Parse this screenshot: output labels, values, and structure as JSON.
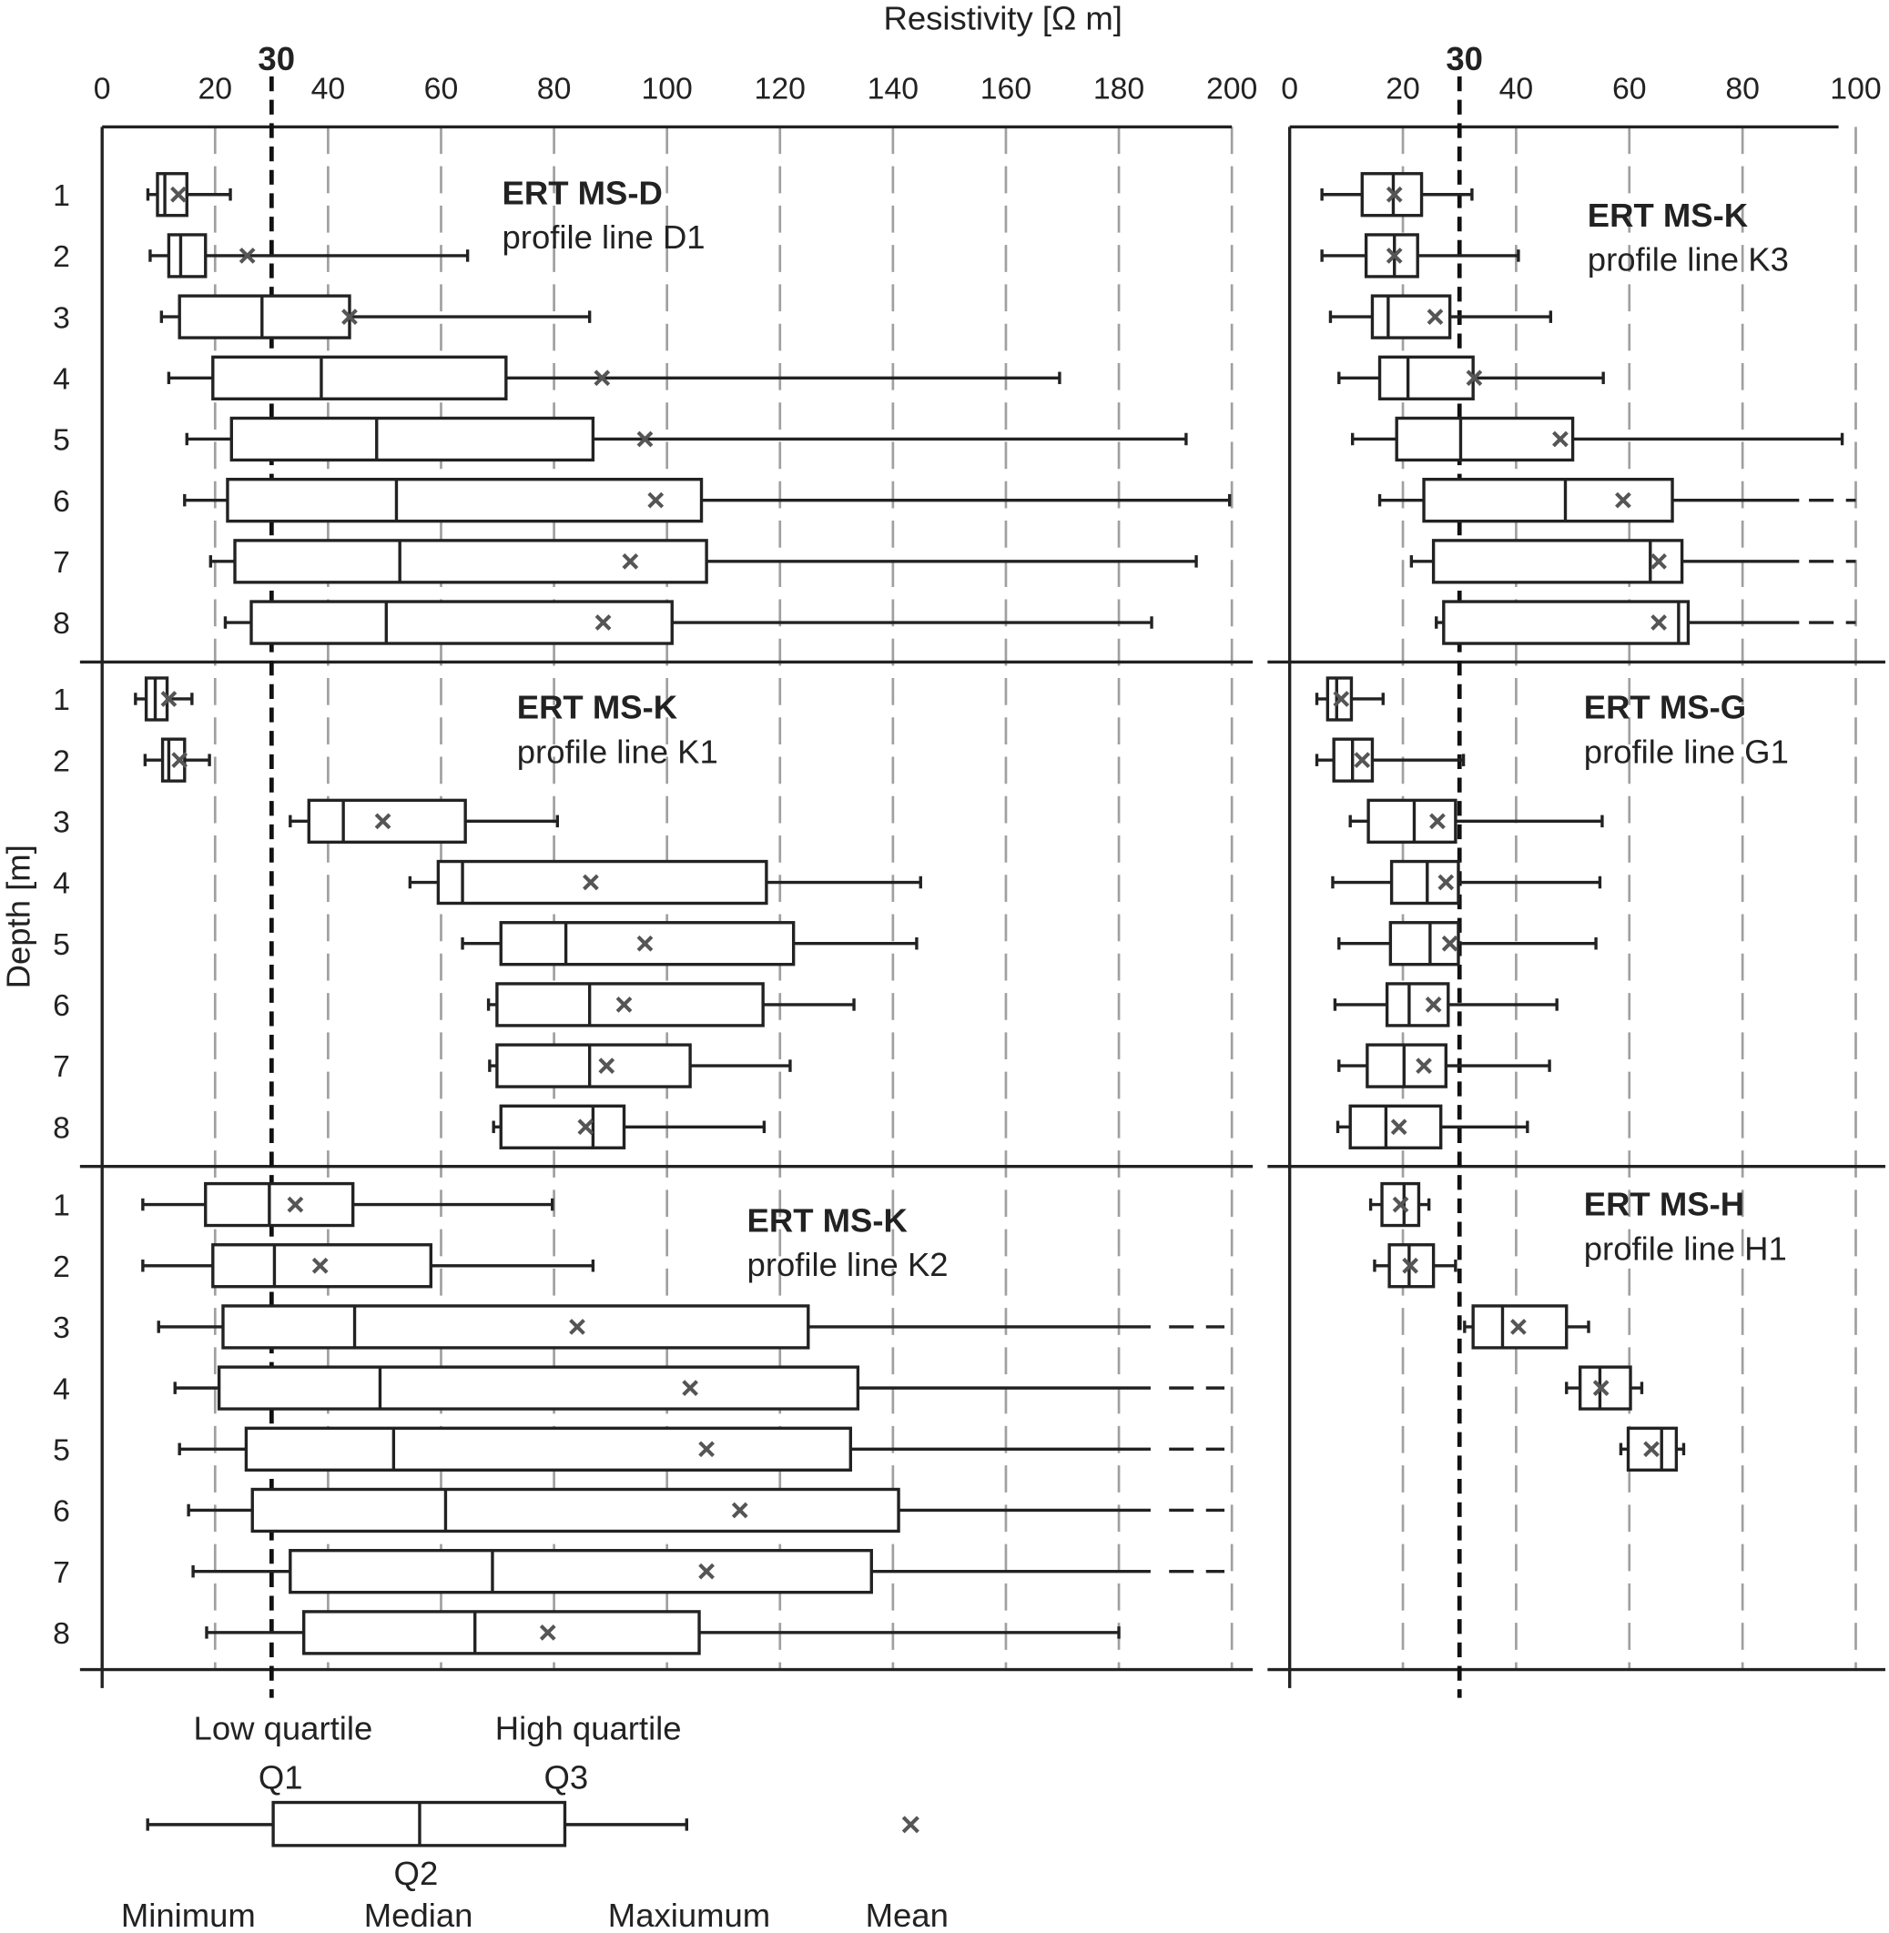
{
  "chart_data": {
    "type": "boxplot",
    "title": "",
    "xlabel": "Resistivity [Ω m]",
    "ylabel": "Depth [m]",
    "threshold": {
      "value": 30,
      "label": "30"
    },
    "axes": [
      {
        "id": "left",
        "xlim": [
          0,
          200
        ],
        "ticks": [
          "0",
          "20",
          "40",
          "60",
          "80",
          "100",
          "120",
          "140",
          "160",
          "180",
          "200"
        ],
        "grid": true
      },
      {
        "id": "right",
        "xlim": [
          0,
          100
        ],
        "ticks": [
          "0",
          "20",
          "40",
          "60",
          "80",
          "100"
        ],
        "grid": true
      }
    ],
    "depth_labels": [
      "1",
      "2",
      "3",
      "4",
      "5",
      "6",
      "7",
      "8"
    ],
    "panels": [
      {
        "axis": "left",
        "row": 0,
        "title": "ERT MS-D",
        "subtitle": "profile line D1",
        "boxes": [
          {
            "depth": 1,
            "min": 8.1,
            "q1": 9.8,
            "median": 11.1,
            "q3": 15.0,
            "max": 22.7,
            "mean": 13.5
          },
          {
            "depth": 2,
            "min": 8.5,
            "q1": 11.8,
            "median": 13.9,
            "q3": 18.3,
            "max": 64.7,
            "mean": 25.7
          },
          {
            "depth": 3,
            "min": 10.5,
            "q1": 13.7,
            "median": 28.3,
            "q3": 43.8,
            "max": 86.3,
            "mean": 43.8
          },
          {
            "depth": 4,
            "min": 11.8,
            "q1": 19.6,
            "median": 38.8,
            "q3": 71.5,
            "max": 169.5,
            "mean": 88.5
          },
          {
            "depth": 5,
            "min": 15.0,
            "q1": 22.9,
            "median": 48.6,
            "q3": 86.9,
            "max": 191.9,
            "mean": 96.1
          },
          {
            "depth": 6,
            "min": 14.6,
            "q1": 22.2,
            "median": 52.1,
            "q3": 106.1,
            "max": 199.6,
            "mean": 98.0
          },
          {
            "depth": 7,
            "min": 19.2,
            "q1": 23.5,
            "median": 52.7,
            "q3": 107.0,
            "max": 193.7,
            "mean": 93.5
          },
          {
            "depth": 8,
            "min": 21.8,
            "q1": 26.4,
            "median": 50.3,
            "q3": 100.9,
            "max": 185.8,
            "mean": 88.7
          }
        ]
      },
      {
        "axis": "left",
        "row": 1,
        "title": "ERT MS-K",
        "subtitle": "profile line K1",
        "boxes": [
          {
            "depth": 1,
            "min": 5.9,
            "q1": 7.8,
            "median": 9.4,
            "q3": 11.5,
            "max": 15.9,
            "mean": 11.8
          },
          {
            "depth": 2,
            "min": 7.6,
            "q1": 10.7,
            "median": 11.8,
            "q3": 14.6,
            "max": 19.0,
            "mean": 13.7
          },
          {
            "depth": 3,
            "min": 33.3,
            "q1": 36.6,
            "median": 42.7,
            "q3": 64.3,
            "max": 80.6,
            "mean": 49.7
          },
          {
            "depth": 4,
            "min": 54.5,
            "q1": 59.5,
            "median": 63.8,
            "q3": 117.6,
            "max": 144.9,
            "mean": 86.5
          },
          {
            "depth": 5,
            "min": 63.8,
            "q1": 70.6,
            "median": 82.1,
            "q3": 122.4,
            "max": 144.2,
            "mean": 96.1
          },
          {
            "depth": 6,
            "min": 68.4,
            "q1": 69.9,
            "median": 86.3,
            "q3": 117.0,
            "max": 133.1,
            "mean": 92.4
          },
          {
            "depth": 7,
            "min": 68.6,
            "q1": 69.9,
            "median": 86.3,
            "q3": 104.1,
            "max": 121.8,
            "mean": 89.3
          },
          {
            "depth": 8,
            "min": 69.3,
            "q1": 70.6,
            "median": 86.9,
            "q3": 92.4,
            "max": 117.2,
            "mean": 85.6
          }
        ]
      },
      {
        "axis": "left",
        "row": 2,
        "title": "ERT MS-K",
        "subtitle": "profile line K2",
        "boxes": [
          {
            "depth": 1,
            "min": 7.2,
            "q1": 18.3,
            "median": 29.6,
            "q3": 44.4,
            "max": 79.7,
            "mean": 34.2
          },
          {
            "depth": 2,
            "min": 7.2,
            "q1": 19.6,
            "median": 30.5,
            "q3": 58.2,
            "max": 86.9,
            "mean": 38.6
          },
          {
            "depth": 3,
            "min": 10.0,
            "q1": 21.4,
            "median": 44.7,
            "q3": 125.0,
            "max": null,
            "max_exceeds_axis": true,
            "mean": 84.1
          },
          {
            "depth": 4,
            "min": 12.9,
            "q1": 20.7,
            "median": 49.2,
            "q3": 133.8,
            "max": null,
            "max_exceeds_axis": true,
            "mean": 104.1
          },
          {
            "depth": 5,
            "min": 13.7,
            "q1": 25.5,
            "median": 51.6,
            "q3": 132.5,
            "max": null,
            "max_exceeds_axis": true,
            "mean": 107.0
          },
          {
            "depth": 6,
            "min": 15.3,
            "q1": 26.6,
            "median": 60.8,
            "q3": 141.0,
            "max": null,
            "max_exceeds_axis": true,
            "mean": 112.9
          },
          {
            "depth": 7,
            "min": 16.1,
            "q1": 33.3,
            "median": 69.1,
            "q3": 136.2,
            "max": null,
            "max_exceeds_axis": true,
            "mean": 107.0
          },
          {
            "depth": 8,
            "min": 18.5,
            "q1": 35.7,
            "median": 66.0,
            "q3": 105.7,
            "max": 180.0,
            "mean": 78.9
          }
        ]
      },
      {
        "axis": "right",
        "row": 0,
        "title": "ERT MS-K",
        "subtitle": "profile line K3",
        "boxes": [
          {
            "depth": 1,
            "min": 5.7,
            "q1": 12.8,
            "median": 18.3,
            "q3": 23.3,
            "max": 32.2,
            "mean": 18.5
          },
          {
            "depth": 2,
            "min": 5.7,
            "q1": 13.5,
            "median": 18.5,
            "q3": 22.6,
            "max": 40.4,
            "mean": 18.5
          },
          {
            "depth": 3,
            "min": 7.2,
            "q1": 14.6,
            "median": 17.4,
            "q3": 28.3,
            "max": 46.1,
            "mean": 25.7
          },
          {
            "depth": 4,
            "min": 8.7,
            "q1": 15.9,
            "median": 20.9,
            "q3": 32.4,
            "max": 55.4,
            "mean": 32.6
          },
          {
            "depth": 5,
            "min": 11.1,
            "q1": 18.9,
            "median": 30.2,
            "q3": 50.0,
            "max": 97.6,
            "mean": 47.8
          },
          {
            "depth": 6,
            "min": 15.9,
            "q1": 23.7,
            "median": 48.7,
            "q3": 67.6,
            "max": null,
            "max_exceeds_axis": true,
            "mean": 58.9
          },
          {
            "depth": 7,
            "min": 21.5,
            "q1": 25.4,
            "median": 63.7,
            "q3": 69.3,
            "max": null,
            "max_exceeds_axis": true,
            "mean": 65.2
          },
          {
            "depth": 8,
            "min": 25.9,
            "q1": 27.2,
            "median": 68.7,
            "q3": 70.4,
            "max": null,
            "max_exceeds_axis": true,
            "mean": 65.2
          }
        ]
      },
      {
        "axis": "right",
        "row": 1,
        "title": "ERT MS-G",
        "subtitle": "profile line G1",
        "boxes": [
          {
            "depth": 1,
            "min": 4.8,
            "q1": 6.7,
            "median": 8.3,
            "q3": 10.9,
            "max": 16.5,
            "mean": 9.1
          },
          {
            "depth": 2,
            "min": 4.8,
            "q1": 7.8,
            "median": 11.1,
            "q3": 14.6,
            "max": 30.7,
            "mean": 12.8
          },
          {
            "depth": 3,
            "min": 10.7,
            "q1": 13.9,
            "median": 22.0,
            "q3": 29.3,
            "max": 55.2,
            "mean": 26.1
          },
          {
            "depth": 4,
            "min": 7.6,
            "q1": 18.0,
            "median": 24.3,
            "q3": 29.8,
            "max": 54.8,
            "mean": 27.6
          },
          {
            "depth": 5,
            "min": 8.7,
            "q1": 17.8,
            "median": 24.8,
            "q3": 29.8,
            "max": 54.1,
            "mean": 28.3
          },
          {
            "depth": 6,
            "min": 8.0,
            "q1": 17.2,
            "median": 21.1,
            "q3": 28.0,
            "max": 47.2,
            "mean": 25.4
          },
          {
            "depth": 7,
            "min": 8.7,
            "q1": 13.7,
            "median": 20.2,
            "q3": 27.6,
            "max": 45.9,
            "mean": 23.7
          },
          {
            "depth": 8,
            "min": 8.5,
            "q1": 10.7,
            "median": 17.0,
            "q3": 26.7,
            "max": 42.0,
            "mean": 19.3
          }
        ]
      },
      {
        "axis": "right",
        "row": 2,
        "title": "ERT MS-H",
        "subtitle": "profile line H1",
        "boxes": [
          {
            "depth": 1,
            "min": 14.3,
            "q1": 16.3,
            "median": 20.2,
            "q3": 22.8,
            "max": 24.6,
            "mean": 19.6
          },
          {
            "depth": 2,
            "min": 15.0,
            "q1": 17.6,
            "median": 21.1,
            "q3": 25.4,
            "max": 29.3,
            "mean": 21.3
          },
          {
            "depth": 3,
            "min": 30.9,
            "q1": 32.4,
            "median": 37.6,
            "q3": 48.9,
            "max": 52.8,
            "mean": 40.4
          },
          {
            "depth": 4,
            "min": 48.9,
            "q1": 51.3,
            "median": 54.8,
            "q3": 60.2,
            "max": 62.2,
            "mean": 55.0
          },
          {
            "depth": 5,
            "min": 58.5,
            "q1": 59.8,
            "median": 65.7,
            "q3": 68.3,
            "max": 69.6,
            "mean": 63.9
          }
        ]
      }
    ],
    "legend": {
      "low_quartile": "Low quartile",
      "q1": "Q1",
      "high_quartile": "High quartile",
      "q3": "Q3",
      "q2": "Q2",
      "minimum": "Minimum",
      "median": "Median",
      "maximum": "Maxiumum",
      "mean": "Mean"
    },
    "colors": {
      "box": "#222222",
      "mean_marker": "#555555",
      "grid": "#a0a0a0",
      "threshold": "#111111"
    }
  }
}
